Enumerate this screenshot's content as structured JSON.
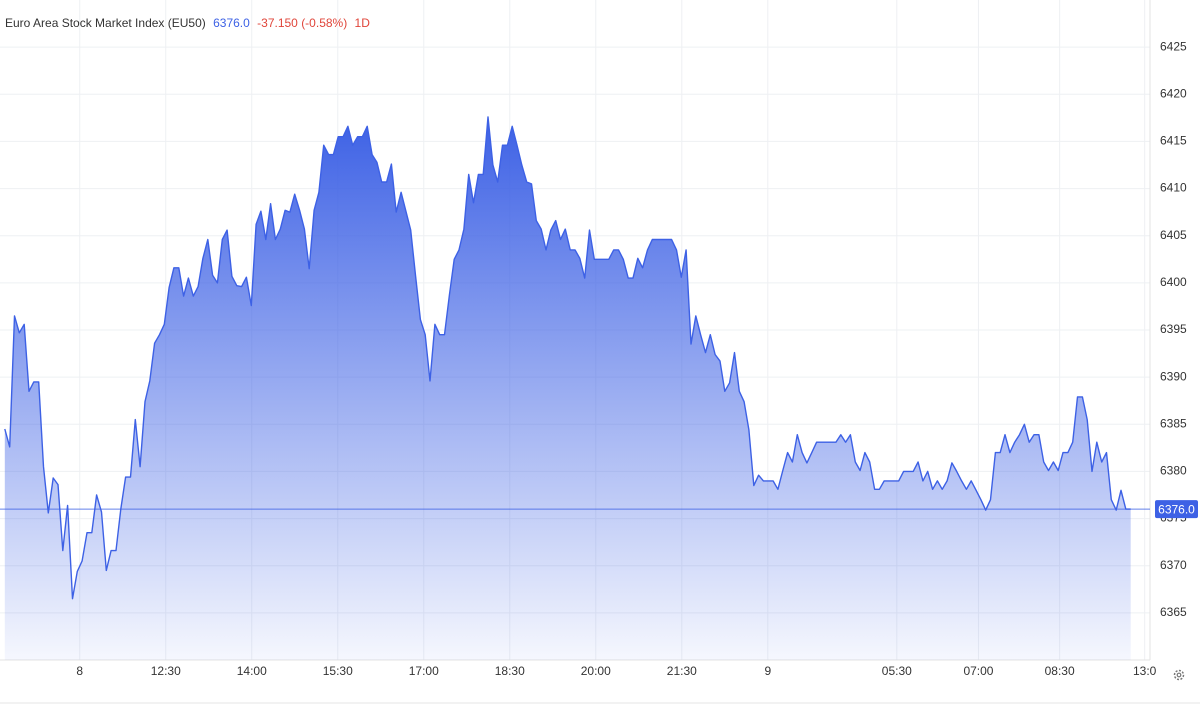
{
  "chart_data": {
    "type": "area",
    "title": "Euro Area Stock Market Index (EU50)",
    "last_price": {
      "value": 6376,
      "label": "6376.0"
    },
    "change": "-37.150 (-0.58%)",
    "period": "1D",
    "color": "#3d61e5",
    "change_color": "#e0453a",
    "grid": true,
    "values": [
      6384.5,
      6382.6,
      6396.5,
      6394.7,
      6395.6,
      6388.5,
      6389.5,
      6389.5,
      6380.5,
      6375.6,
      6379.3,
      6378.6,
      6371.6,
      6376.4,
      6366.5,
      6369.4,
      6370.5,
      6373.5,
      6373.5,
      6377.5,
      6375.7,
      6369.5,
      6371.6,
      6371.6,
      6376.0,
      6379.4,
      6379.4,
      6385.5,
      6380.5,
      6387.4,
      6389.6,
      6393.6,
      6394.5,
      6395.6,
      6399.5,
      6401.6,
      6401.6,
      6398.6,
      6400.5,
      6398.6,
      6399.6,
      6402.6,
      6404.6,
      6400.8,
      6400.0,
      6404.6,
      6405.6,
      6400.7,
      6399.7,
      6399.6,
      6400.6,
      6397.6,
      6406.2,
      6407.6,
      6404.6,
      6408.4,
      6404.6,
      6405.7,
      6407.7,
      6407.5,
      6409.4,
      6407.7,
      6405.7,
      6401.5,
      6407.7,
      6409.6,
      6414.6,
      6413.6,
      6413.6,
      6415.5,
      6415.5,
      6416.6,
      6414.6,
      6415.5,
      6415.5,
      6416.6,
      6413.6,
      6412.8,
      6410.7,
      6410.7,
      6412.6,
      6407.5,
      6409.6,
      6407.6,
      6405.6,
      6400.8,
      6396.1,
      6394.5,
      6389.6,
      6395.6,
      6394.5,
      6394.5,
      6398.7,
      6402.5,
      6403.5,
      6405.7,
      6411.5,
      6408.5,
      6411.5,
      6411.5,
      6417.6,
      6412.5,
      6410.7,
      6414.6,
      6414.6,
      6416.6,
      6414.6,
      6412.5,
      6410.7,
      6410.5,
      6406.6,
      6405.7,
      6403.5,
      6405.6,
      6406.6,
      6404.6,
      6405.7,
      6403.5,
      6403.5,
      6402.6,
      6400.5,
      6405.6,
      6402.5,
      6402.5,
      6402.5,
      6402.5,
      6403.5,
      6403.5,
      6402.5,
      6400.5,
      6400.5,
      6402.6,
      6401.6,
      6403.5,
      6404.6,
      6404.6,
      6404.6,
      6404.6,
      6404.6,
      6403.5,
      6400.6,
      6403.5,
      6393.5,
      6396.5,
      6394.5,
      6392.6,
      6394.5,
      6392.4,
      6391.7,
      6388.5,
      6389.4,
      6392.6,
      6388.5,
      6387.4,
      6384.4,
      6378.5,
      6379.6,
      6379.0,
      6379.0,
      6379.0,
      6378.1,
      6380.1,
      6382.0,
      6381.0,
      6383.9,
      6382.0,
      6380.9,
      6382.0,
      6383.1,
      6383.1,
      6383.1,
      6383.1,
      6383.1,
      6383.9,
      6383.1,
      6383.9,
      6381.0,
      6380.1,
      6382.0,
      6381.0,
      6378.1,
      6378.1,
      6379.0,
      6379.0,
      6379.0,
      6379.0,
      6380.0,
      6380.0,
      6380.0,
      6381.0,
      6379.0,
      6380.0,
      6378.1,
      6379.0,
      6378.1,
      6379.0,
      6380.9,
      6380.0,
      6379.0,
      6378.1,
      6379.0,
      6378.0,
      6377.0,
      6375.9,
      6377.0,
      6382.0,
      6382.0,
      6383.9,
      6382.0,
      6383.1,
      6383.9,
      6385.0,
      6383.1,
      6383.9,
      6383.9,
      6381.0,
      6380.1,
      6381.0,
      6380.1,
      6382.0,
      6382.0,
      6383.1,
      6387.9,
      6387.9,
      6385.5,
      6380.0,
      6383.1,
      6381.0,
      6382.0,
      6377.0,
      6375.9,
      6378.0,
      6376.0,
      6376.0
    ],
    "xlim": [
      -1,
      237
    ],
    "xticks": [
      {
        "value": 15.5,
        "label": "8"
      },
      {
        "value": 33.3,
        "label": "12:30"
      },
      {
        "value": 51.1,
        "label": "14:00"
      },
      {
        "value": 68.9,
        "label": "15:30"
      },
      {
        "value": 86.7,
        "label": "17:00"
      },
      {
        "value": 104.5,
        "label": "18:30"
      },
      {
        "value": 122.3,
        "label": "20:00"
      },
      {
        "value": 140.1,
        "label": "21:30"
      },
      {
        "value": 157.9,
        "label": "9"
      },
      {
        "value": 184.6,
        "label": "05:30"
      },
      {
        "value": 201.5,
        "label": "07:00"
      },
      {
        "value": 218.3,
        "label": "08:30"
      },
      {
        "value": 235.9,
        "label": "13:0"
      }
    ],
    "ylim": [
      6360,
      6430
    ],
    "yticks": [
      6365,
      6370,
      6375,
      6380,
      6385,
      6390,
      6395,
      6400,
      6405,
      6410,
      6415,
      6420,
      6425
    ]
  }
}
